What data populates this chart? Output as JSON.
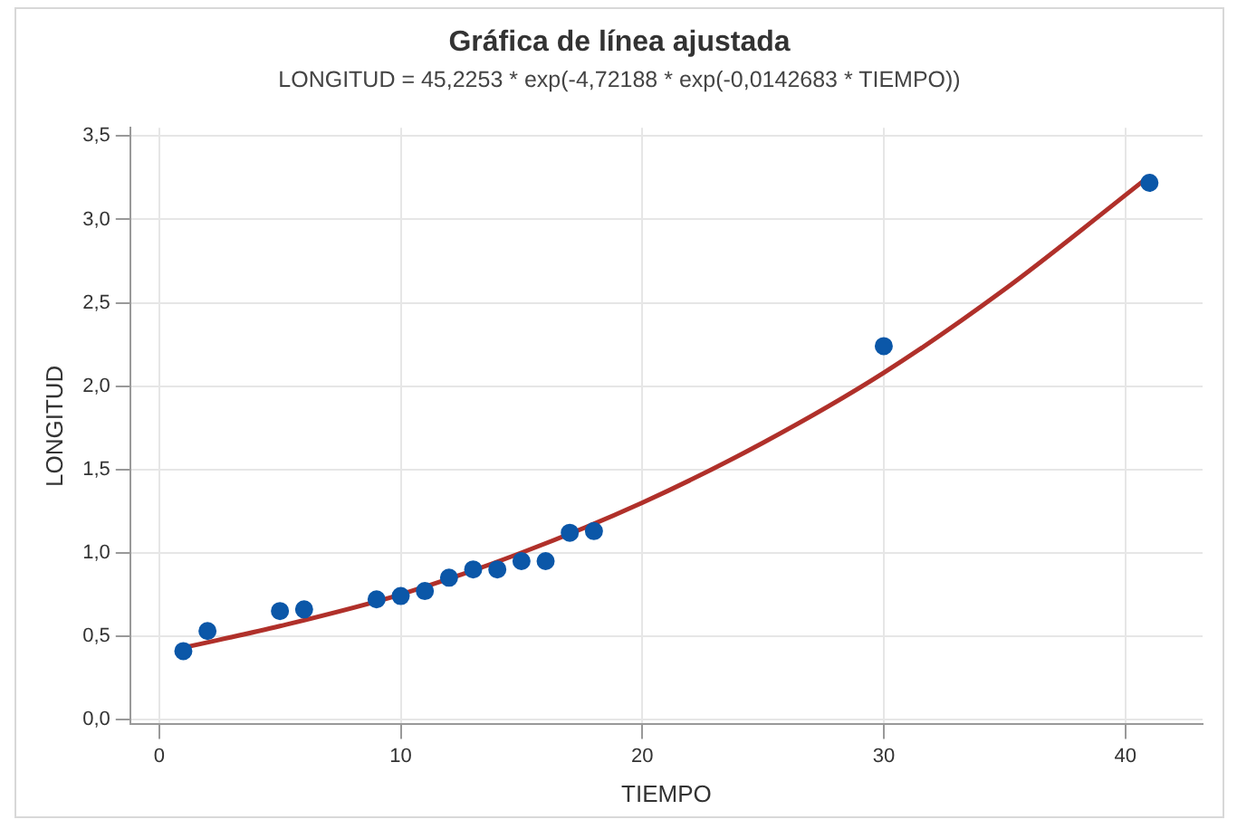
{
  "chart_data": {
    "type": "scatter",
    "title": "Gráfica de línea ajustada",
    "subtitle": "LONGITUD = 45,2253 * exp(-4,72188 * exp(-0,0142683 * TIEMPO))",
    "xlabel": "TIEMPO",
    "ylabel": "LONGITUD",
    "x": [
      1,
      2,
      5,
      6,
      9,
      10,
      11,
      12,
      13,
      14,
      15,
      16,
      17,
      18,
      30,
      41
    ],
    "series": [
      {
        "color": "#0b57a8",
        "marker": "circle",
        "values": [
          0.41,
          0.53,
          0.65,
          0.66,
          0.72,
          0.74,
          0.77,
          0.85,
          0.9,
          0.9,
          0.95,
          0.95,
          1.12,
          1.13,
          2.24,
          3.22
        ]
      },
      {
        "type": "line",
        "color": "#b0302a",
        "marker": "none",
        "line_style": "solid",
        "x": [
          1,
          5,
          10,
          15,
          20,
          25,
          30,
          35,
          41
        ],
        "values": [
          0.43,
          0.56,
          0.75,
          1.0,
          1.3,
          1.66,
          2.08,
          2.58,
          3.26
        ]
      }
    ],
    "xlim": [
      -1.2,
      43.2
    ],
    "xticks": [
      0,
      10,
      20,
      30,
      40
    ],
    "ylim": [
      -0.03,
      3.55
    ],
    "yticks": [
      {
        "value": 0,
        "label": "0,0"
      },
      {
        "value": 0.5,
        "label": "0,5"
      },
      {
        "value": 1,
        "label": "1,0"
      },
      {
        "value": 1.5,
        "label": "1,5"
      },
      {
        "value": 2,
        "label": "2,0"
      },
      {
        "value": 2.5,
        "label": "2,5"
      },
      {
        "value": 3,
        "label": "3,0"
      },
      {
        "value": 3.5,
        "label": "3,5"
      }
    ],
    "grid": true,
    "legend": false
  }
}
